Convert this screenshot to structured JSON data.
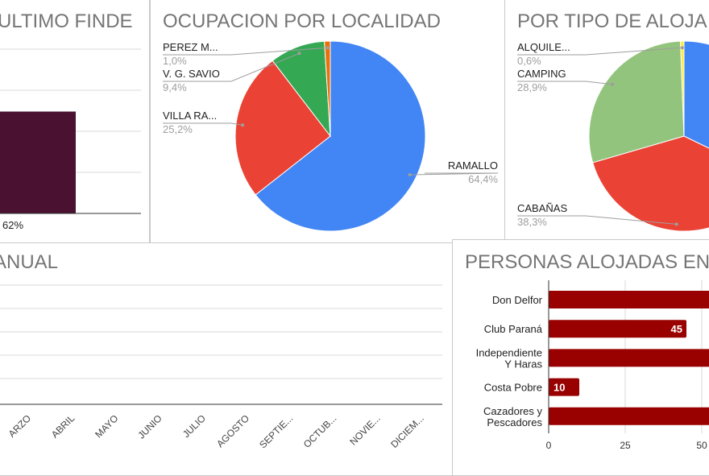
{
  "panels": {
    "finde": {
      "title": "ULTIMO FINDE"
    },
    "localidad": {
      "title": "OCUPACION POR LOCALIDAD"
    },
    "tipo": {
      "title": "POR TIPO DE ALOJA"
    },
    "anual": {
      "title": "ANUAL"
    },
    "personas": {
      "title": "PERSONAS ALOJADAS EN"
    }
  },
  "chart_data": [
    {
      "id": "finde",
      "type": "bar",
      "title": "ULTIMO FINDE",
      "categories": [
        ""
      ],
      "values": [
        62
      ],
      "data_labels": [
        "62%"
      ],
      "ylim": [
        0,
        100
      ],
      "grid": true,
      "colors": [
        "#4a1130"
      ]
    },
    {
      "id": "localidad",
      "type": "pie",
      "title": "OCUPACION POR LOCALIDAD",
      "labels": [
        "RAMALLO",
        "VILLA RA...",
        "V. G. SAVIO",
        "PEREZ M..."
      ],
      "values": [
        64.4,
        25.2,
        9.4,
        1.0
      ],
      "value_labels": [
        "64,4%",
        "25,2%",
        "9,4%",
        "1,0%"
      ],
      "colors": [
        "#4285f4",
        "#ea4335",
        "#34a853",
        "#e8710a"
      ]
    },
    {
      "id": "tipo",
      "type": "pie",
      "title": "POR TIPO DE ALOJA",
      "labels": [
        "CABAÑAS",
        "CAMPING",
        "ALQUILE..."
      ],
      "values": [
        38.3,
        28.9,
        0.6
      ],
      "value_labels": [
        "38,3%",
        "28,9%",
        "0,6%"
      ],
      "colors": [
        "#ea4335",
        "#93c47d",
        "#ffeb3b"
      ],
      "other_color": "#4285f4"
    },
    {
      "id": "anual",
      "type": "line",
      "title": "ANUAL",
      "categories": [
        "MARZO",
        "ABRIL",
        "MAYO",
        "JUNIO",
        "JULIO",
        "AGOSTO",
        "SEPTIE...",
        "OCTUB...",
        "NOVIE...",
        "DICIEM..."
      ],
      "tick_labels": [
        "ARZO",
        "ABRIL",
        "MAYO",
        "JUNIO",
        "JULIO",
        "AGOSTO",
        "SEPTIE...",
        "OCTUB...",
        "NOVIE...",
        "DICIEM..."
      ],
      "series": [],
      "grid": true
    },
    {
      "id": "personas",
      "type": "bar",
      "orientation": "horizontal",
      "title": "PERSONAS ALOJADAS EN",
      "categories": [
        "Don Delfor",
        "Club Paraná",
        "Independiente Y Haras",
        "Costa Pobre",
        "Cazadores y Pescadores"
      ],
      "category_lines": [
        [
          "Don Delfor"
        ],
        [
          "Club Paraná"
        ],
        [
          "Independiente",
          "Y Haras"
        ],
        [
          "Costa Pobre"
        ],
        [
          "Cazadores y",
          "Pescadores"
        ]
      ],
      "values": [
        null,
        45,
        null,
        10,
        null
      ],
      "data_labels": [
        "",
        "45",
        "",
        "10",
        ""
      ],
      "xticks": [
        0,
        25,
        50
      ],
      "grid": true,
      "colors": [
        "#990000"
      ]
    }
  ]
}
